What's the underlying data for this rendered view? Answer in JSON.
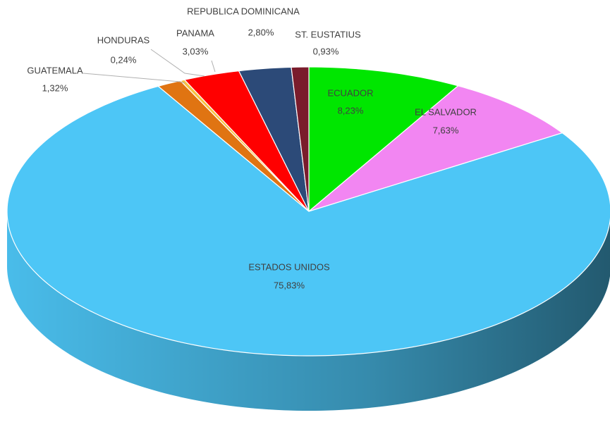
{
  "chart_data": {
    "type": "pie3d",
    "categories": [
      "ECUADOR",
      "EL SALVADOR",
      "ESTADOS UNIDOS",
      "GUATEMALA",
      "HONDURAS",
      "PANAMA",
      "REPUBLICA DOMINICANA",
      "ST. EUSTATIUS"
    ],
    "values": [
      8.23,
      7.63,
      75.83,
      1.32,
      0.24,
      3.03,
      2.8,
      0.93
    ],
    "value_labels": [
      "8,23%",
      "7,63%",
      "75,83%",
      "1,32%",
      "0,24%",
      "3,03%",
      "2,80%",
      "0,93%"
    ],
    "colors": [
      "#00e600",
      "#f286f2",
      "#4dc6f6",
      "#e07412",
      "#f5c242",
      "#ff0000",
      "#2c4a78",
      "#7a1c2c"
    ]
  }
}
